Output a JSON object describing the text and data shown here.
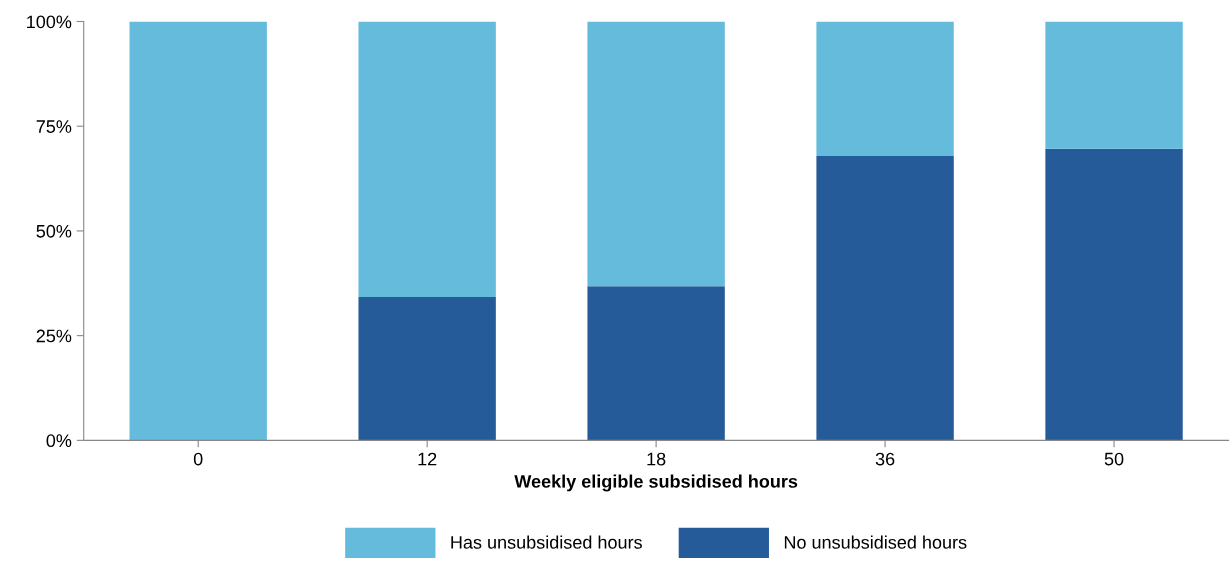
{
  "chart_data": {
    "type": "bar",
    "stacked": true,
    "xlabel": "Weekly eligible subsidised hours",
    "categories": [
      "0",
      "12",
      "18",
      "36",
      "50"
    ],
    "series": [
      {
        "name": "No unsubsidised hours",
        "color": "#265b9a",
        "values": [
          0,
          34.2,
          36.8,
          67.9,
          69.6
        ]
      },
      {
        "name": "Has unsubsidised hours",
        "color": "#65bbdb",
        "values": [
          100,
          65.8,
          63.2,
          32.1,
          30.4
        ]
      }
    ],
    "ylim": [
      0,
      100
    ],
    "yticks": [
      {
        "value": 0,
        "label": "0%"
      },
      {
        "value": 25,
        "label": "25%"
      },
      {
        "value": 50,
        "label": "50%"
      },
      {
        "value": 75,
        "label": "75%"
      },
      {
        "value": 100,
        "label": "100%"
      }
    ],
    "grid": false,
    "legend": "bottom"
  }
}
